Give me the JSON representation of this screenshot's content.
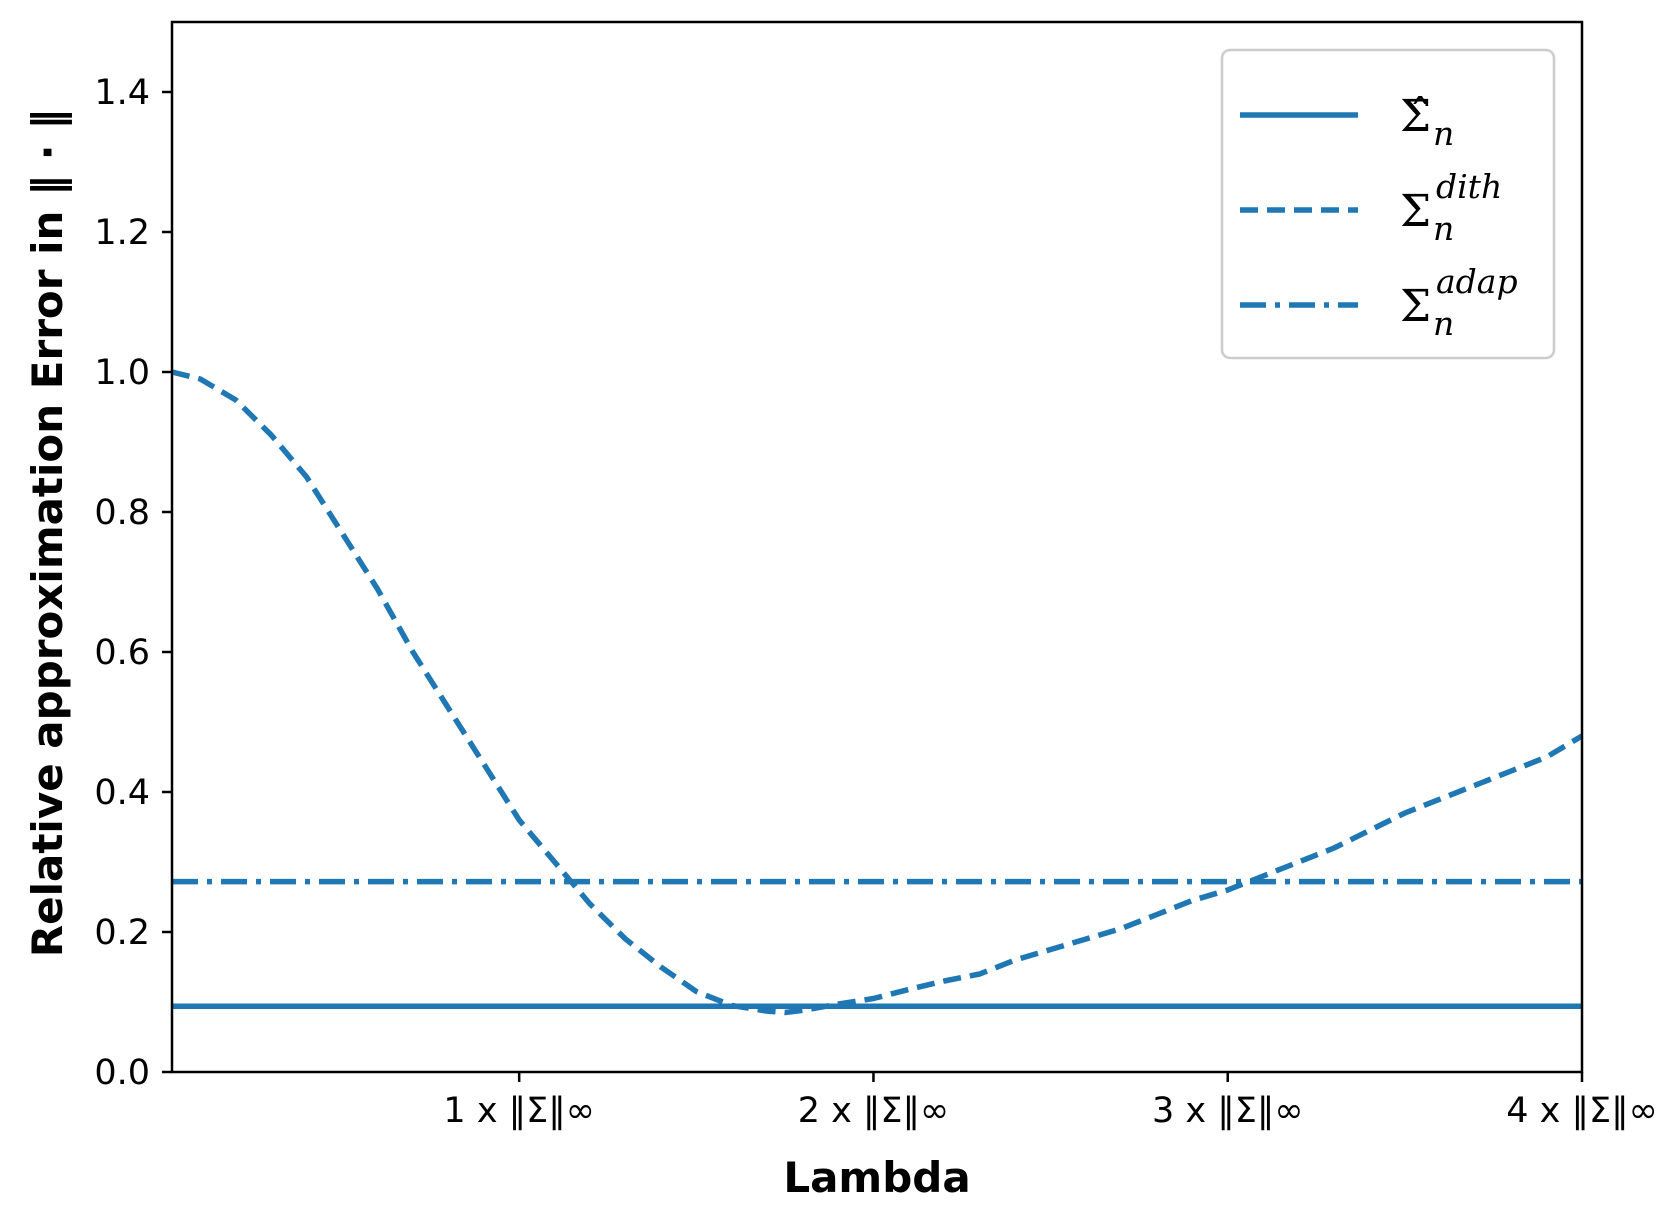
{
  "chart_data": {
    "type": "line",
    "title": "",
    "xlabel": "Lambda",
    "ylabel": "Relative approximation Error in ‖ · ‖",
    "xlim": [
      0.02,
      4.0
    ],
    "ylim": [
      0.0,
      1.5
    ],
    "x_ticks": [
      {
        "value": 1,
        "label": "1 x ‖Σ‖∞"
      },
      {
        "value": 2,
        "label": "2 x ‖Σ‖∞"
      },
      {
        "value": 3,
        "label": "3 x ‖Σ‖∞"
      },
      {
        "value": 4,
        "label": "4 x ‖Σ‖∞"
      }
    ],
    "y_ticks": [
      {
        "value": 0.0,
        "label": "0.0"
      },
      {
        "value": 0.2,
        "label": "0.2"
      },
      {
        "value": 0.4,
        "label": "0.4"
      },
      {
        "value": 0.6,
        "label": "0.6"
      },
      {
        "value": 0.8,
        "label": "0.8"
      },
      {
        "value": 1.0,
        "label": "1.0"
      },
      {
        "value": 1.2,
        "label": "1.2"
      },
      {
        "value": 1.4,
        "label": "1.4"
      }
    ],
    "grid": false,
    "legend_position": "top-right",
    "color": "#1f77b4",
    "series": [
      {
        "name": "Σ̂_n",
        "symbol": "Σ̂",
        "subscript": "n",
        "superscript": "",
        "style": "solid",
        "x": [
          0.02,
          4.0
        ],
        "values": [
          0.094,
          0.094
        ]
      },
      {
        "name": "Σ_n^dith",
        "symbol": "Σ",
        "subscript": "n",
        "superscript": "dith",
        "style": "dashed",
        "x": [
          0.02,
          0.1,
          0.2,
          0.3,
          0.4,
          0.5,
          0.6,
          0.7,
          0.8,
          0.9,
          1.0,
          1.1,
          1.2,
          1.3,
          1.4,
          1.5,
          1.6,
          1.7,
          1.75,
          1.8,
          1.9,
          2.0,
          2.1,
          2.2,
          2.3,
          2.4,
          2.5,
          2.6,
          2.7,
          2.8,
          2.9,
          3.0,
          3.1,
          3.2,
          3.3,
          3.4,
          3.5,
          3.6,
          3.7,
          3.8,
          3.9,
          4.0
        ],
        "values": [
          1.0,
          0.99,
          0.96,
          0.91,
          0.85,
          0.77,
          0.69,
          0.6,
          0.52,
          0.44,
          0.36,
          0.3,
          0.24,
          0.19,
          0.15,
          0.115,
          0.095,
          0.087,
          0.085,
          0.088,
          0.097,
          0.105,
          0.118,
          0.13,
          0.14,
          0.16,
          0.175,
          0.19,
          0.205,
          0.225,
          0.245,
          0.26,
          0.28,
          0.3,
          0.32,
          0.345,
          0.37,
          0.39,
          0.41,
          0.43,
          0.45,
          0.48
        ]
      },
      {
        "name": "Σ_n^adap",
        "symbol": "Σ",
        "subscript": "n",
        "superscript": "adap",
        "style": "dashdot",
        "x": [
          0.02,
          4.0
        ],
        "values": [
          0.272,
          0.272
        ]
      }
    ]
  }
}
